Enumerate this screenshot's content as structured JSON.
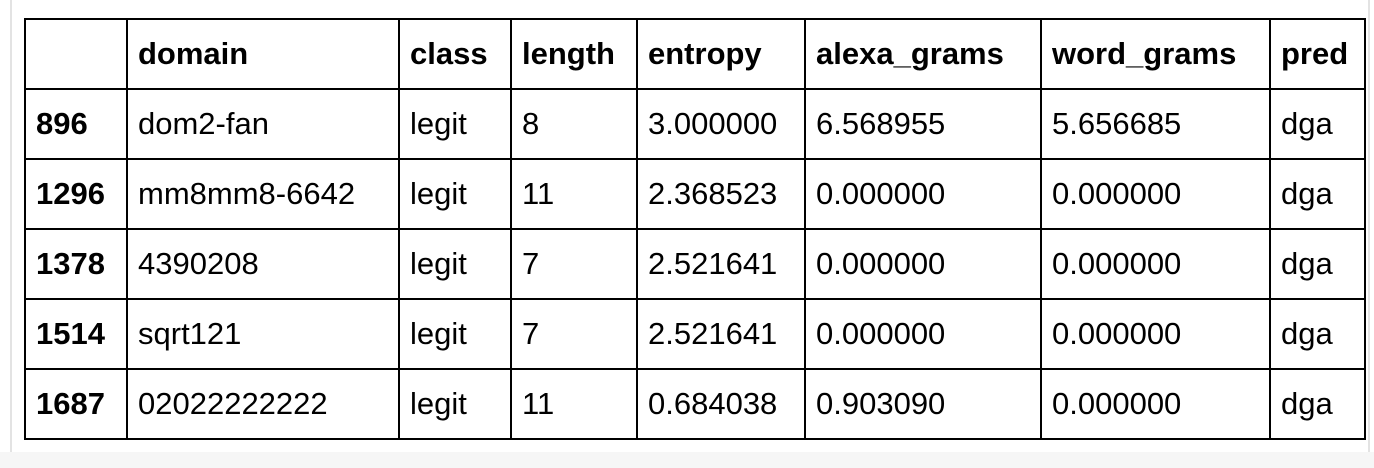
{
  "table": {
    "columns": [
      "",
      "domain",
      "class",
      "length",
      "entropy",
      "alexa_grams",
      "word_grams",
      "pred"
    ],
    "rows": [
      {
        "index": "896",
        "domain": "dom2-fan",
        "class": "legit",
        "length": "8",
        "entropy": "3.000000",
        "alexa_grams": "6.568955",
        "word_grams": "5.656685",
        "pred": "dga"
      },
      {
        "index": "1296",
        "domain": "mm8mm8-6642",
        "class": "legit",
        "length": "11",
        "entropy": "2.368523",
        "alexa_grams": "0.000000",
        "word_grams": "0.000000",
        "pred": "dga"
      },
      {
        "index": "1378",
        "domain": "4390208",
        "class": "legit",
        "length": "7",
        "entropy": "2.521641",
        "alexa_grams": "0.000000",
        "word_grams": "0.000000",
        "pred": "dga"
      },
      {
        "index": "1514",
        "domain": "sqrt121",
        "class": "legit",
        "length": "7",
        "entropy": "2.521641",
        "alexa_grams": "0.000000",
        "word_grams": "0.000000",
        "pred": "dga"
      },
      {
        "index": "1687",
        "domain": "02022222222",
        "class": "legit",
        "length": "11",
        "entropy": "0.684038",
        "alexa_grams": "0.903090",
        "word_grams": "0.000000",
        "pred": "dga"
      }
    ]
  }
}
